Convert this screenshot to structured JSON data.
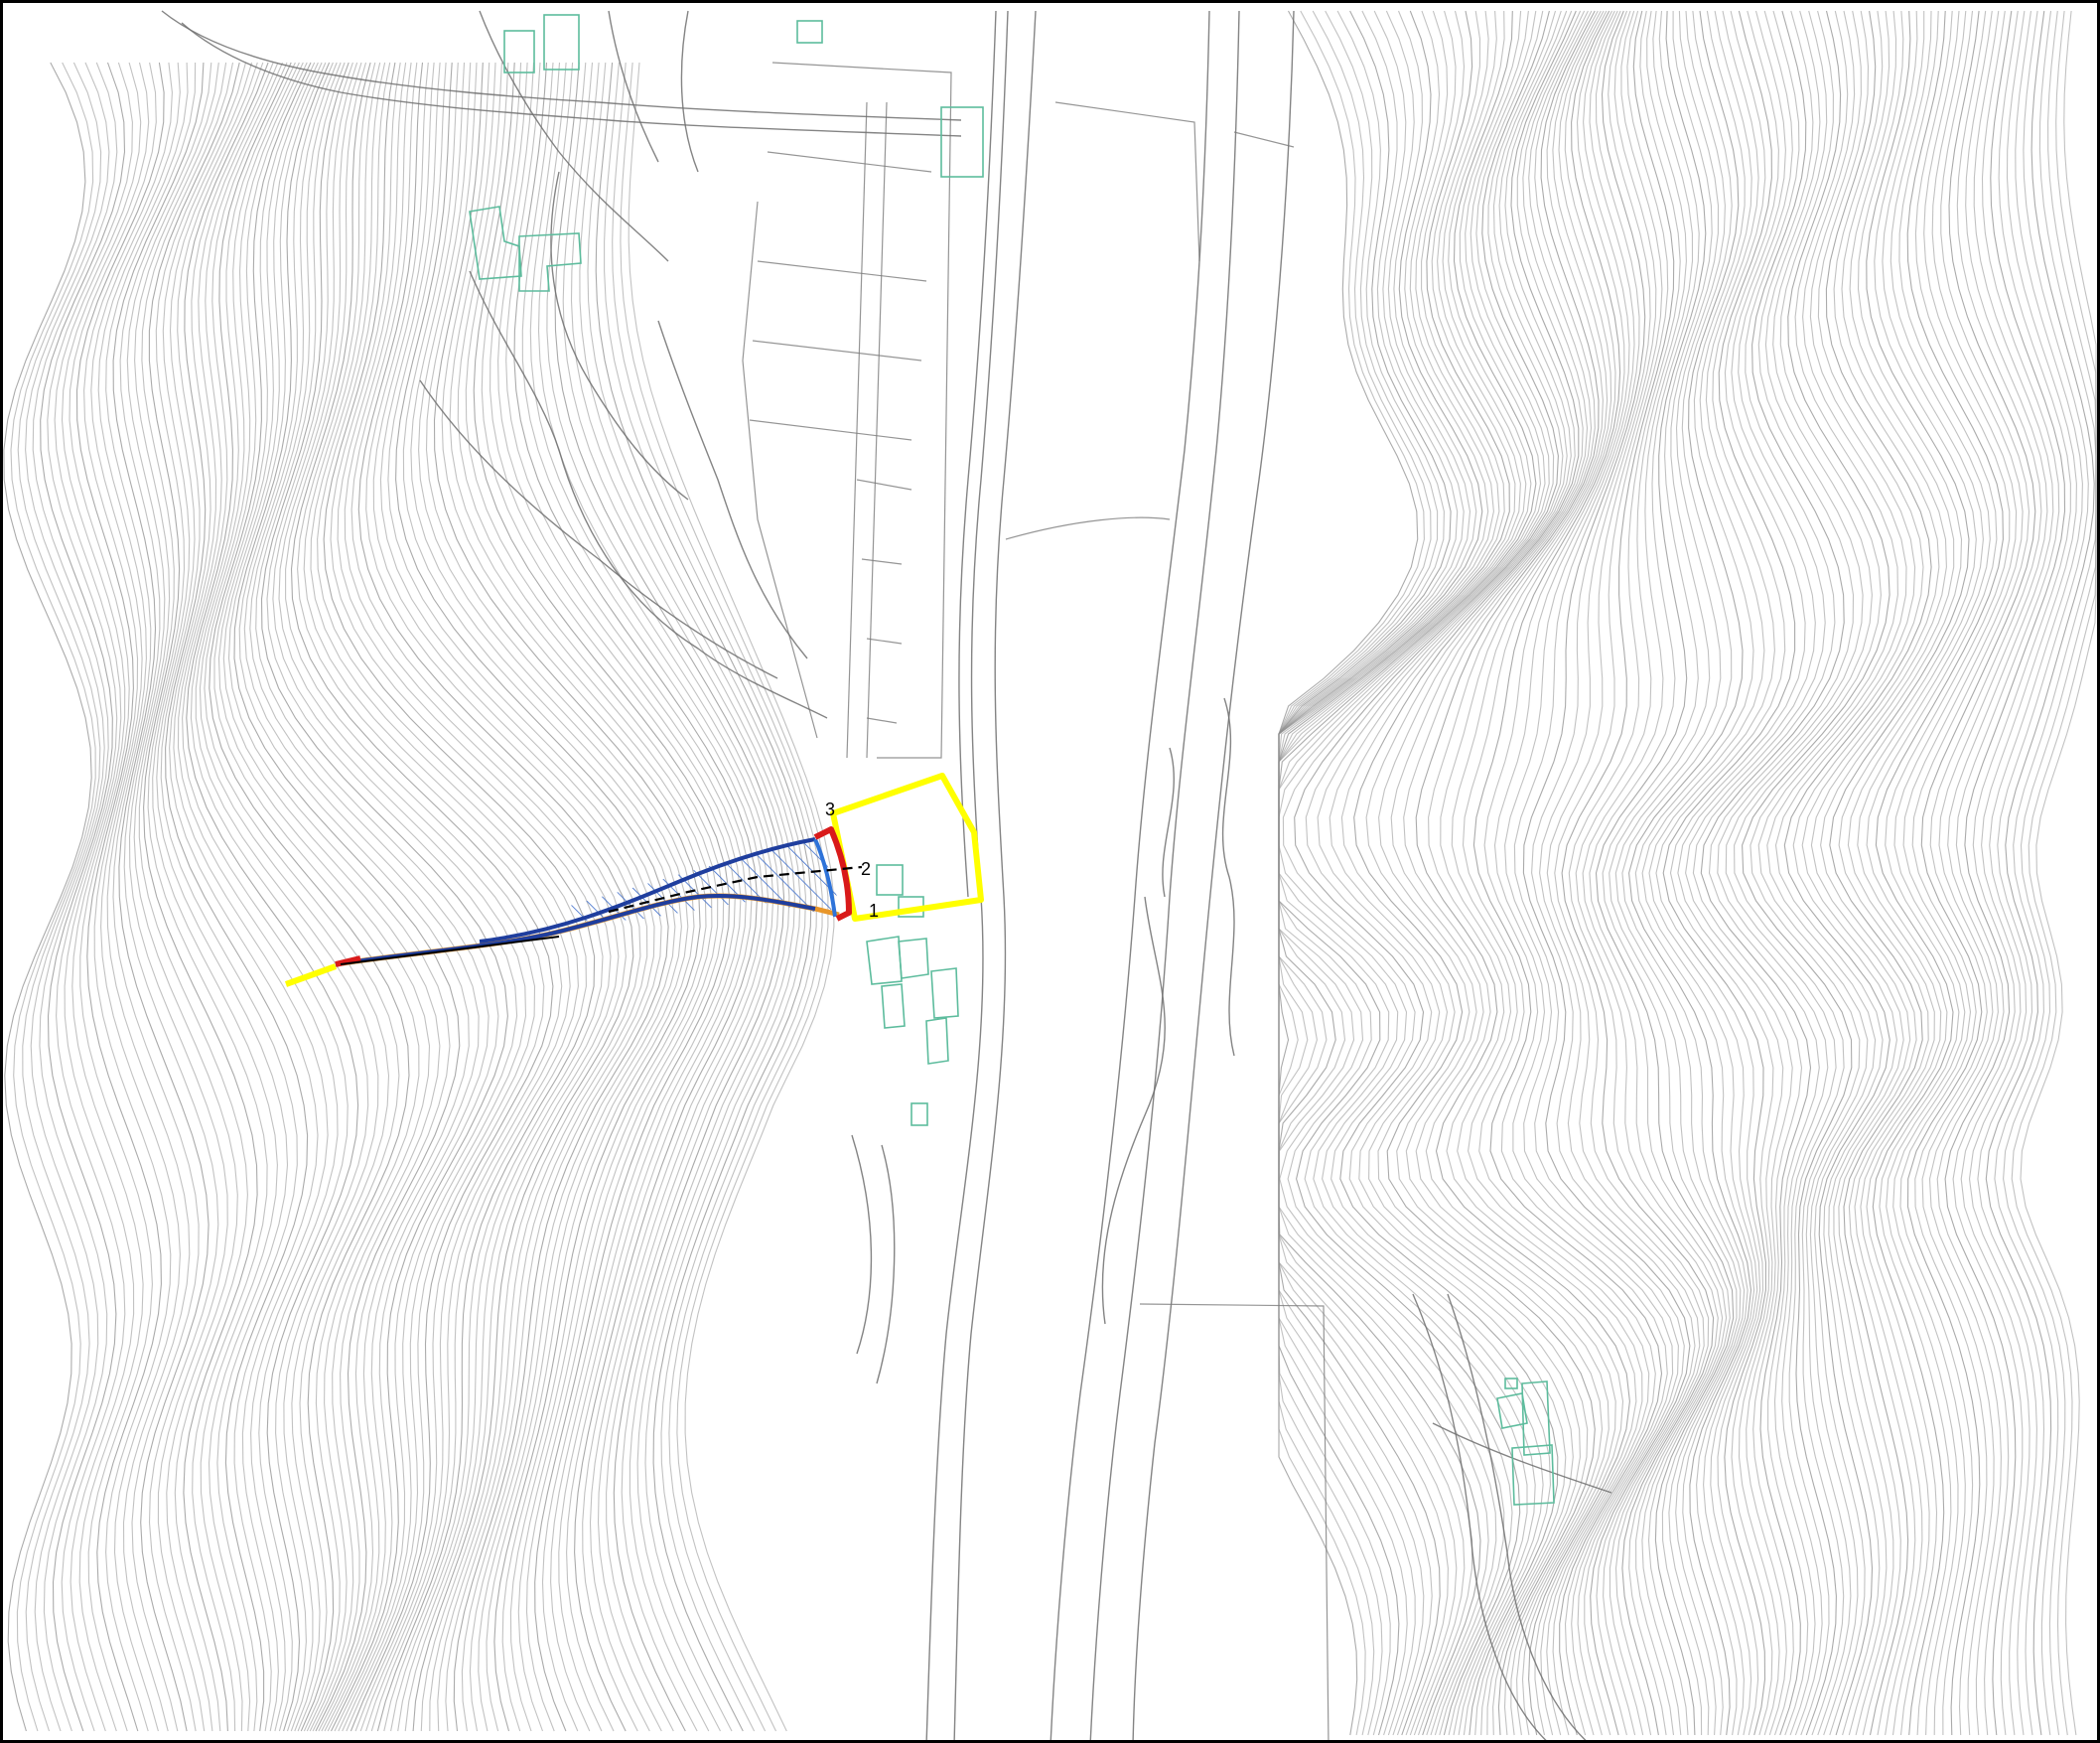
{
  "map": {
    "markers": [
      {
        "id": "marker-1",
        "text": "1"
      },
      {
        "id": "marker-2",
        "text": "2"
      },
      {
        "id": "marker-3",
        "text": "3"
      }
    ],
    "colors": {
      "contour": "#8f8f8f",
      "building": "#5dbc9d",
      "boundary": "#ffff00",
      "flow_outline": "#1f3e9e",
      "section": "#d91a1a",
      "ground_line": "#e8962a",
      "hatch": "#3a6bc9",
      "frame": "#000000"
    }
  }
}
